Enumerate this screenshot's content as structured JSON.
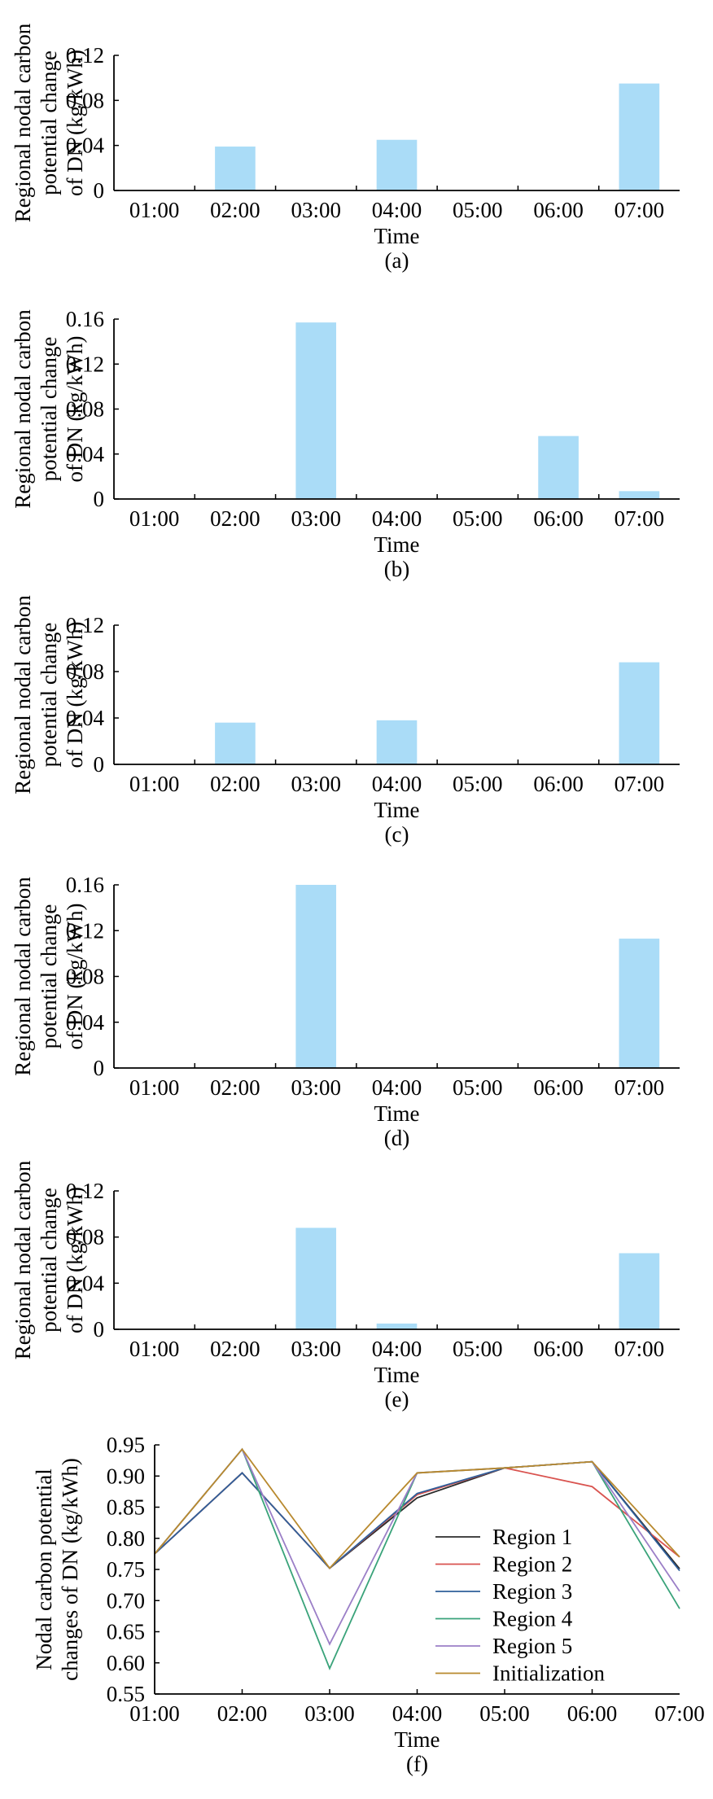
{
  "chart_data": [
    {
      "panel": "(a)",
      "type": "bar",
      "ylabel": [
        "Regional nodal carbon",
        "potential change",
        "of DN (kg/kWh)"
      ],
      "xlabel": "Time",
      "categories": [
        "01:00",
        "02:00",
        "03:00",
        "04:00",
        "05:00",
        "06:00",
        "07:00"
      ],
      "values": [
        0,
        0.039,
        0,
        0.045,
        0,
        0,
        0.095
      ],
      "ylim": [
        0,
        0.12
      ],
      "yticks": [
        "0",
        "0.04",
        "0.08",
        "0.12"
      ],
      "bar_color": "#aadcf7",
      "grid": false
    },
    {
      "panel": "(b)",
      "type": "bar",
      "ylabel": [
        "Regional nodal carbon",
        "potential change",
        "of DN (kg/kWh)"
      ],
      "xlabel": "Time",
      "categories": [
        "01:00",
        "02:00",
        "03:00",
        "04:00",
        "05:00",
        "06:00",
        "07:00"
      ],
      "values": [
        0,
        0,
        0.157,
        0,
        0,
        0.056,
        0.007
      ],
      "ylim": [
        0,
        0.16
      ],
      "yticks": [
        "0",
        "0.04",
        "0.08",
        "0.12",
        "0.16"
      ],
      "bar_color": "#aadcf7",
      "grid": false
    },
    {
      "panel": "(c)",
      "type": "bar",
      "ylabel": [
        "Regional nodal carbon",
        "potential change",
        "of DN (kg/kWh)"
      ],
      "xlabel": "Time",
      "categories": [
        "01:00",
        "02:00",
        "03:00",
        "04:00",
        "05:00",
        "06:00",
        "07:00"
      ],
      "values": [
        0,
        0.036,
        0,
        0.038,
        0,
        0,
        0.088
      ],
      "ylim": [
        0,
        0.12
      ],
      "yticks": [
        "0",
        "0.04",
        "0.08",
        "0.12"
      ],
      "bar_color": "#aadcf7",
      "grid": false
    },
    {
      "panel": "(d)",
      "type": "bar",
      "ylabel": [
        "Regional nodal carbon",
        "potential change",
        "of DN (kg/kWh)"
      ],
      "xlabel": "Time",
      "categories": [
        "01:00",
        "02:00",
        "03:00",
        "04:00",
        "05:00",
        "06:00",
        "07:00"
      ],
      "values": [
        0,
        0,
        0.16,
        0,
        0,
        0,
        0.113
      ],
      "ylim": [
        0,
        0.16
      ],
      "yticks": [
        "0",
        "0.04",
        "0.08",
        "0.12",
        "0.16"
      ],
      "bar_color": "#aadcf7",
      "grid": false
    },
    {
      "panel": "(e)",
      "type": "bar",
      "ylabel": [
        "Regional nodal carbon",
        "potential change",
        "of DN (kg/kWh)"
      ],
      "xlabel": "Time",
      "categories": [
        "01:00",
        "02:00",
        "03:00",
        "04:00",
        "05:00",
        "06:00",
        "07:00"
      ],
      "values": [
        0,
        0,
        0.088,
        0.005,
        0,
        0,
        0.066
      ],
      "ylim": [
        0,
        0.12
      ],
      "yticks": [
        "0",
        "0.04",
        "0.08",
        "0.12"
      ],
      "bar_color": "#aadcf7",
      "grid": false
    },
    {
      "panel": "(f)",
      "type": "line",
      "ylabel": [
        "Nodal carbon potential",
        "changes of DN (kg/kWh)"
      ],
      "xlabel": "Time",
      "categories": [
        "01:00",
        "02:00",
        "03:00",
        "04:00",
        "05:00",
        "06:00",
        "07:00"
      ],
      "ylim": [
        0.55,
        0.95
      ],
      "yticks": [
        "0.55",
        "0.60",
        "0.65",
        "0.70",
        "0.75",
        "0.80",
        "0.85",
        "0.90",
        "0.95"
      ],
      "legend_position": "right-center",
      "grid": false,
      "series": [
        {
          "name": "Region 1",
          "color": "#2b2b2b",
          "values": [
            0.775,
            0.905,
            0.752,
            0.865,
            0.913,
            0.923,
            0.751
          ]
        },
        {
          "name": "Region 2",
          "color": "#d9534f",
          "values": [
            0.775,
            0.905,
            0.752,
            0.87,
            0.913,
            0.883,
            0.77
          ]
        },
        {
          "name": "Region 3",
          "color": "#2f5f9a",
          "values": [
            0.775,
            0.905,
            0.752,
            0.872,
            0.913,
            0.923,
            0.748
          ]
        },
        {
          "name": "Region 4",
          "color": "#3aa37a",
          "values": [
            0.775,
            0.943,
            0.591,
            0.905,
            0.913,
            0.923,
            0.687
          ]
        },
        {
          "name": "Region 5",
          "color": "#9b7fc7",
          "values": [
            0.775,
            0.943,
            0.63,
            0.905,
            0.913,
            0.923,
            0.715
          ]
        },
        {
          "name": "Initialization",
          "color": "#b8892e",
          "values": [
            0.775,
            0.943,
            0.752,
            0.905,
            0.913,
            0.923,
            0.77
          ]
        }
      ]
    }
  ]
}
